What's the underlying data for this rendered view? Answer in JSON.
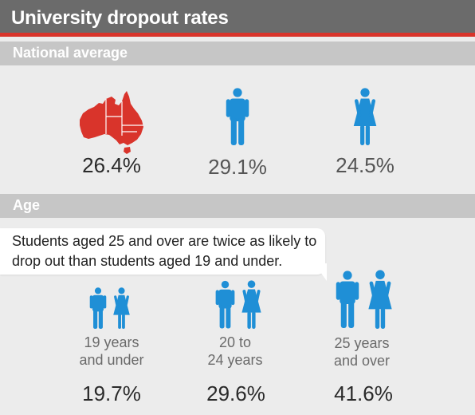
{
  "title": "University dropout rates",
  "colors": {
    "accent": "#d9342b",
    "icon_blue": "#1f8fd6",
    "header_bg": "#6b6b6b",
    "section_bg": "#c6c6c6"
  },
  "national": {
    "heading": "National average",
    "overall": {
      "icon": "australia-map-icon",
      "value": "26.4%"
    },
    "male": {
      "icon": "male-figure-icon",
      "value": "29.1%"
    },
    "female": {
      "icon": "female-figure-icon",
      "value": "24.5%"
    }
  },
  "age": {
    "heading": "Age",
    "note": "Students aged 25 and over are twice as likely to drop out than students aged 19 and under.",
    "groups": [
      {
        "line1": "19 years",
        "line2": "and under",
        "value": "19.7%"
      },
      {
        "line1": "20 to",
        "line2": "24 years",
        "value": "29.6%"
      },
      {
        "line1": "25 years",
        "line2": "and over",
        "value": "41.6%"
      }
    ]
  }
}
